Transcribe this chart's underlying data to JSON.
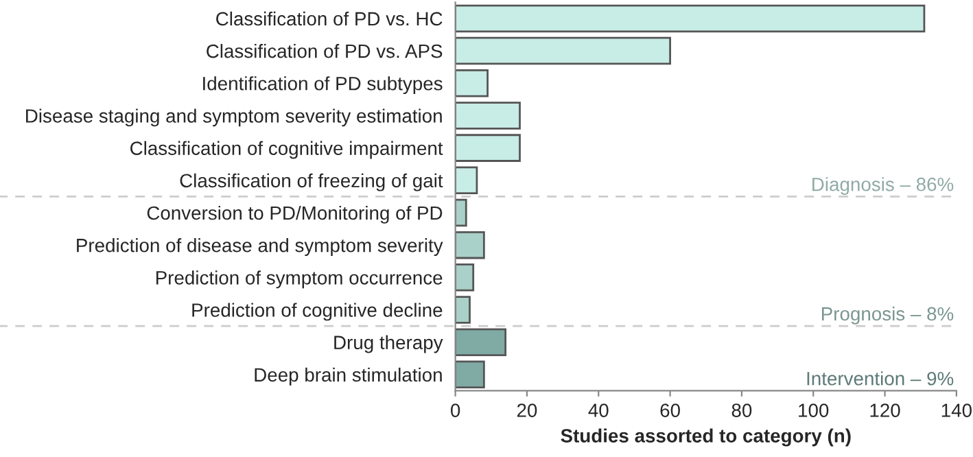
{
  "chart_data": {
    "type": "bar",
    "orientation": "horizontal",
    "xlabel": "Studies assorted to category (n)",
    "categories": [
      "Classification of PD vs. HC",
      "Classification of PD vs. APS",
      "Identification of PD subtypes",
      "Disease staging and symptom severity estimation",
      "Classification of cognitive impairment",
      "Classification of freezing of gait",
      "Conversion to PD/Monitoring of PD",
      "Prediction of disease and symptom severity",
      "Prediction of symptom occurrence",
      "Prediction of cognitive decline",
      "Drug therapy",
      "Deep brain stimulation"
    ],
    "values": [
      131,
      60,
      9,
      18,
      18,
      6,
      3,
      8,
      5,
      4,
      14,
      8
    ],
    "colors": [
      "#c8ece6",
      "#c8ece6",
      "#c8ece6",
      "#c8ece6",
      "#c8ece6",
      "#c8ece6",
      "#a9d0c9",
      "#a9d0c9",
      "#a9d0c9",
      "#a9d0c9",
      "#80aaa4",
      "#80aaa4"
    ],
    "xlim": [
      0,
      140
    ],
    "xticks": [
      0,
      20,
      40,
      60,
      80,
      100,
      120,
      140
    ],
    "annotations": [
      "Diagnosis – 86%",
      "Prognosis – 8%",
      "Intervention – 9%"
    ],
    "grid": false,
    "legend": false
  }
}
